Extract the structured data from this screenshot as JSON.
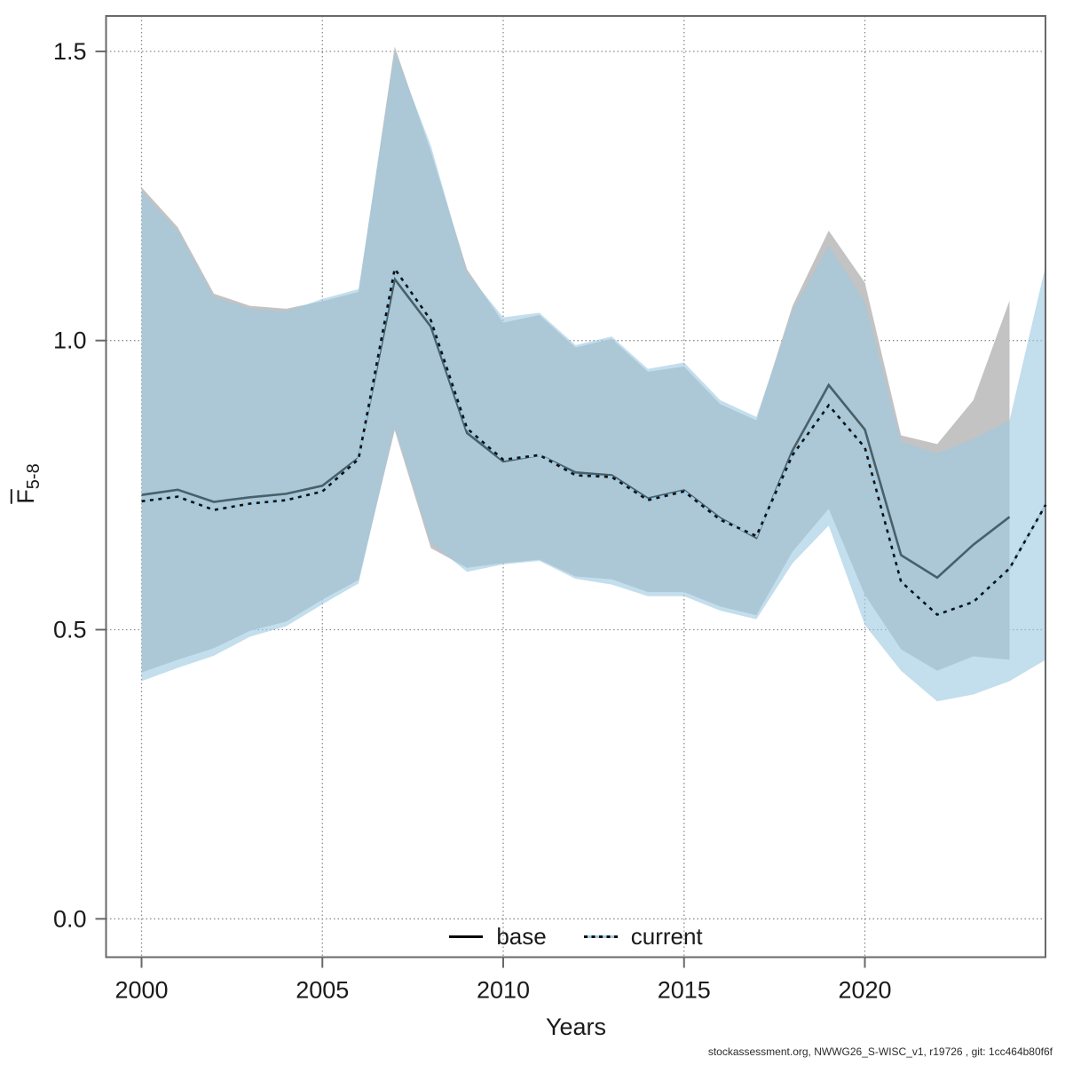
{
  "figure": {
    "xlabel": "Years",
    "ylabel": {
      "main": "F",
      "sub": "5-8"
    },
    "legend": [
      {
        "label": "base"
      },
      {
        "label": "current"
      }
    ],
    "footer": "stockassessment.org, NWWG26_S-WISC_v1, r19726 , git: 1cc464b80f6f"
  },
  "chart_data": {
    "type": "line",
    "title": "",
    "xlabel": "Years",
    "ylabel": "mean F ages 5-8 (Fbar 5-8)",
    "xlim": [
      1999,
      2025
    ],
    "ylim": [
      -0.05,
      1.55
    ],
    "xticks": [
      2000,
      2005,
      2010,
      2015,
      2020
    ],
    "yticks": [
      0.0,
      0.5,
      1.0,
      1.5
    ],
    "grid": "dotted",
    "legend_position": "bottom-center",
    "colors": {
      "base_line": "#46606c",
      "base_band": "#c3c3c3",
      "current_line_underlay": "#9ecae1",
      "current_line_dots": "#101010",
      "current_band": "#9ecae1",
      "grid": "#8c8c8c",
      "axis": "#696969"
    },
    "series": [
      {
        "name": "base",
        "line_style": "solid",
        "years": [
          2000,
          2001,
          2002,
          2003,
          2004,
          2005,
          2006,
          2007,
          2008,
          2009,
          2010,
          2011,
          2012,
          2013,
          2014,
          2015,
          2016,
          2017,
          2018,
          2019,
          2020,
          2021,
          2022,
          2023,
          2024
        ],
        "mean": [
          0.733,
          0.742,
          0.721,
          0.729,
          0.735,
          0.749,
          0.797,
          1.106,
          1.024,
          0.84,
          0.791,
          0.802,
          0.772,
          0.767,
          0.727,
          0.741,
          0.693,
          0.659,
          0.81,
          0.923,
          0.846,
          0.629,
          0.59,
          0.647,
          0.695
        ],
        "lo": [
          0.426,
          0.448,
          0.468,
          0.498,
          0.514,
          0.552,
          0.586,
          0.845,
          0.641,
          0.607,
          0.615,
          0.621,
          0.592,
          0.587,
          0.565,
          0.565,
          0.54,
          0.525,
          0.635,
          0.709,
          0.56,
          0.466,
          0.429,
          0.454,
          0.448
        ],
        "hi": [
          1.265,
          1.196,
          1.081,
          1.06,
          1.055,
          1.068,
          1.084,
          1.508,
          1.327,
          1.123,
          1.031,
          1.044,
          0.988,
          1.003,
          0.946,
          0.955,
          0.89,
          0.862,
          1.06,
          1.19,
          1.1,
          0.836,
          0.821,
          0.897,
          1.069
        ]
      },
      {
        "name": "current",
        "line_style": "dotted",
        "years": [
          2000,
          2001,
          2002,
          2003,
          2004,
          2005,
          2006,
          2007,
          2008,
          2009,
          2010,
          2011,
          2012,
          2013,
          2014,
          2015,
          2016,
          2017,
          2018,
          2019,
          2020,
          2021,
          2022,
          2023,
          2024,
          2025
        ],
        "mean": [
          0.722,
          0.73,
          0.707,
          0.718,
          0.724,
          0.739,
          0.795,
          1.124,
          1.035,
          0.848,
          0.794,
          0.802,
          0.767,
          0.764,
          0.724,
          0.739,
          0.69,
          0.662,
          0.802,
          0.888,
          0.815,
          0.583,
          0.526,
          0.548,
          0.606,
          0.716
        ],
        "lo": [
          0.411,
          0.434,
          0.455,
          0.488,
          0.506,
          0.544,
          0.58,
          0.851,
          0.65,
          0.6,
          0.613,
          0.619,
          0.588,
          0.578,
          0.558,
          0.558,
          0.533,
          0.518,
          0.615,
          0.68,
          0.508,
          0.429,
          0.376,
          0.388,
          0.411,
          0.448
        ],
        "hi": [
          1.258,
          1.19,
          1.075,
          1.055,
          1.05,
          1.072,
          1.089,
          1.5,
          1.337,
          1.117,
          1.04,
          1.048,
          0.992,
          1.007,
          0.951,
          0.962,
          0.897,
          0.868,
          1.051,
          1.164,
          1.067,
          0.825,
          0.805,
          0.83,
          0.862,
          1.13
        ]
      }
    ]
  }
}
